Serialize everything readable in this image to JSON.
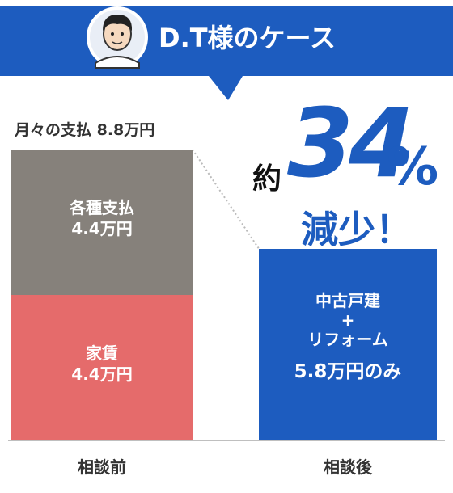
{
  "chart_data": {
    "type": "bar",
    "stacked": true,
    "header": "D.T様のケース",
    "title": "月々の支払 8.8万円",
    "annotation": {
      "prefix": "約",
      "value": "34",
      "unit": "%",
      "suffix": "減少！"
    },
    "categories": [
      "相談前",
      "相談後"
    ],
    "series": [
      {
        "name": "家賃",
        "color": "#e56b6b",
        "values": [
          4.4,
          null
        ],
        "value_labels": [
          "4.4万円",
          null
        ]
      },
      {
        "name": "各種支払",
        "color": "#86817b",
        "values": [
          4.4,
          null
        ],
        "value_labels": [
          "4.4万円",
          null
        ]
      },
      {
        "name": "中古戸建\n+\nリフォーム",
        "color": "#1d5cbf",
        "values": [
          null,
          5.8
        ],
        "value_labels": [
          null,
          "5.8万円のみ"
        ]
      }
    ],
    "ylim": [
      0,
      8.8
    ]
  }
}
